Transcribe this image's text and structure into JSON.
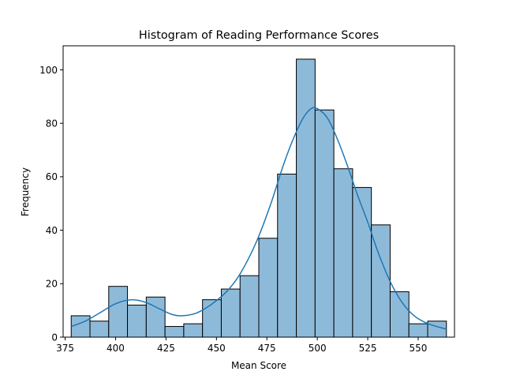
{
  "chart_data": {
    "type": "bar",
    "title": "Histogram of Reading Performance Scores",
    "xlabel": "Mean Score",
    "ylabel": "Frequency",
    "xlim": [
      374,
      568
    ],
    "ylim": [
      0,
      109
    ],
    "xticks": [
      375,
      400,
      425,
      450,
      475,
      500,
      525,
      550
    ],
    "yticks": [
      0,
      20,
      40,
      60,
      80,
      100
    ],
    "grid": false,
    "bars": [
      {
        "x0": 378.0,
        "x1": 387.3,
        "count": 8
      },
      {
        "x0": 387.3,
        "x1": 396.6,
        "count": 6
      },
      {
        "x0": 396.6,
        "x1": 405.9,
        "count": 19
      },
      {
        "x0": 405.9,
        "x1": 415.2,
        "count": 12
      },
      {
        "x0": 415.2,
        "x1": 424.5,
        "count": 15
      },
      {
        "x0": 424.5,
        "x1": 433.8,
        "count": 4
      },
      {
        "x0": 433.8,
        "x1": 443.1,
        "count": 5
      },
      {
        "x0": 443.1,
        "x1": 452.4,
        "count": 14
      },
      {
        "x0": 452.4,
        "x1": 461.7,
        "count": 18
      },
      {
        "x0": 461.7,
        "x1": 471.0,
        "count": 23
      },
      {
        "x0": 471.0,
        "x1": 480.3,
        "count": 37
      },
      {
        "x0": 480.3,
        "x1": 489.6,
        "count": 61
      },
      {
        "x0": 489.6,
        "x1": 498.9,
        "count": 104
      },
      {
        "x0": 498.9,
        "x1": 508.2,
        "count": 85
      },
      {
        "x0": 508.2,
        "x1": 517.5,
        "count": 63
      },
      {
        "x0": 517.5,
        "x1": 526.8,
        "count": 56
      },
      {
        "x0": 526.8,
        "x1": 536.1,
        "count": 42
      },
      {
        "x0": 536.1,
        "x1": 545.4,
        "count": 17
      },
      {
        "x0": 545.4,
        "x1": 554.7,
        "count": 5
      },
      {
        "x0": 554.7,
        "x1": 564.0,
        "count": 6
      }
    ],
    "kde_curve": {
      "x": [
        378,
        385,
        392,
        400,
        408,
        415,
        422,
        428,
        433,
        440,
        447,
        455,
        462,
        470,
        477,
        483,
        488,
        493,
        497,
        500,
        505,
        510,
        515,
        520,
        525,
        530,
        536,
        542,
        548,
        555,
        564
      ],
      "y": [
        4,
        6,
        9,
        12.5,
        14,
        13,
        10.5,
        8.5,
        8,
        9,
        12,
        17,
        24,
        36,
        50,
        64,
        74,
        82,
        85.5,
        85.5,
        82,
        74,
        64,
        53,
        43,
        32,
        21,
        13,
        8,
        5,
        3
      ]
    },
    "colors": {
      "bar_fill": "#8ebad9",
      "bar_edge": "#000000",
      "kde_line": "#1f77b4"
    }
  }
}
